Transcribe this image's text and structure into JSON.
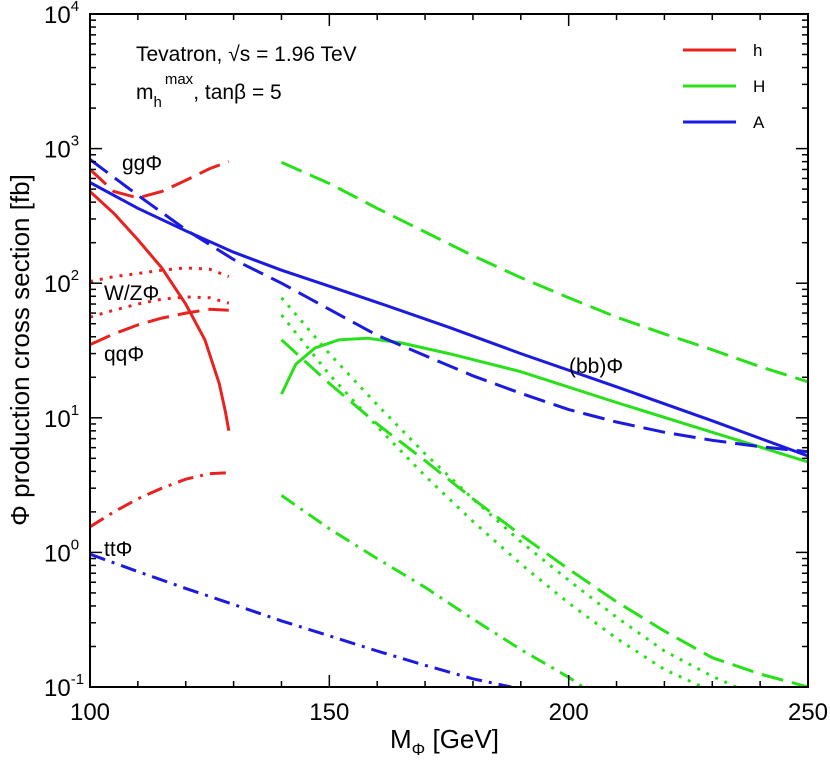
{
  "chart_data": {
    "type": "line",
    "xlabel": "M",
    "xlabel_sub": "Φ",
    "xlabel_unit": " [GeV]",
    "ylabel": "Φ production cross section [fb]",
    "xlim": [
      100,
      250
    ],
    "ylim": [
      0.1,
      10000
    ],
    "yscale": "log",
    "x_ticks": [
      100,
      150,
      200,
      250
    ],
    "y_ticks": [
      {
        "value": 0.1,
        "base": "10",
        "exp": "-1"
      },
      {
        "value": 1,
        "base": "10",
        "exp": "0"
      },
      {
        "value": 10,
        "base": "10",
        "exp": "1"
      },
      {
        "value": 100,
        "base": "10",
        "exp": "2"
      },
      {
        "value": 1000,
        "base": "10",
        "exp": "3"
      },
      {
        "value": 10000,
        "base": "10",
        "exp": "4"
      }
    ],
    "grid": false,
    "legend_position": "top-right",
    "legend": [
      {
        "name": "h",
        "color": "#e8231f"
      },
      {
        "name": "H",
        "color": "#29e01b"
      },
      {
        "name": "A",
        "color": "#1a1ae0"
      }
    ],
    "annotations": {
      "info_line1": "Tevatron, √s = 1.96 TeV",
      "info_line2_main": "m",
      "info_line2_sub": "h",
      "info_line2_sup": "max",
      "info_line2_rest": ", tanβ = 5",
      "gg": "ggΦ",
      "wz": "W/ZΦ",
      "qq": "qqΦ",
      "tt": "ttΦ",
      "bb": "(bb)Φ"
    },
    "series": [
      {
        "boson": "h",
        "process": "bb",
        "color": "#e8231f",
        "style": "solid",
        "points": [
          [
            100,
            480
          ],
          [
            105,
            330
          ],
          [
            110,
            210
          ],
          [
            115,
            130
          ],
          [
            120,
            70
          ],
          [
            124,
            38
          ],
          [
            127,
            18
          ],
          [
            128.3,
            11
          ],
          [
            129,
            8
          ]
        ]
      },
      {
        "boson": "h",
        "process": "gg",
        "color": "#e8231f",
        "style": "dash",
        "points": [
          [
            100,
            700
          ],
          [
            105,
            480
          ],
          [
            110,
            430
          ],
          [
            115,
            480
          ],
          [
            120,
            580
          ],
          [
            125,
            710
          ],
          [
            129,
            800
          ]
        ]
      },
      {
        "boson": "h",
        "process": "WZ",
        "color": "#e8231f",
        "style": "dot",
        "points": [
          [
            100,
            103
          ],
          [
            105,
            112
          ],
          [
            110,
            118
          ],
          [
            115,
            125
          ],
          [
            120,
            130
          ],
          [
            125,
            127
          ],
          [
            129,
            112
          ]
        ]
      },
      {
        "boson": "h",
        "process": "WZ2",
        "color": "#e8231f",
        "style": "dot",
        "points": [
          [
            100,
            56
          ],
          [
            105,
            63
          ],
          [
            110,
            70
          ],
          [
            115,
            76
          ],
          [
            120,
            79
          ],
          [
            125,
            78
          ],
          [
            129,
            71
          ]
        ]
      },
      {
        "boson": "h",
        "process": "qq",
        "color": "#e8231f",
        "style": "dash",
        "points": [
          [
            100,
            35
          ],
          [
            105,
            42
          ],
          [
            110,
            49
          ],
          [
            115,
            55
          ],
          [
            120,
            60
          ],
          [
            125,
            64
          ],
          [
            129,
            63
          ]
        ]
      },
      {
        "boson": "h",
        "process": "tt",
        "color": "#e8231f",
        "style": "dashdot",
        "points": [
          [
            100,
            1.55
          ],
          [
            105,
            2.0
          ],
          [
            110,
            2.5
          ],
          [
            115,
            3.0
          ],
          [
            120,
            3.5
          ],
          [
            125,
            3.85
          ],
          [
            129,
            3.9
          ]
        ]
      },
      {
        "boson": "H",
        "process": "bb",
        "color": "#29e01b",
        "style": "solid",
        "points": [
          [
            140,
            15
          ],
          [
            143,
            25
          ],
          [
            147,
            33
          ],
          [
            152,
            38
          ],
          [
            158,
            39
          ],
          [
            165,
            36
          ],
          [
            175,
            30
          ],
          [
            190,
            22
          ],
          [
            210,
            13
          ],
          [
            230,
            7.8
          ],
          [
            250,
            4.7
          ]
        ]
      },
      {
        "boson": "H",
        "process": "gg",
        "color": "#29e01b",
        "style": "dash",
        "points": [
          [
            140,
            790
          ],
          [
            150,
            550
          ],
          [
            160,
            360
          ],
          [
            170,
            240
          ],
          [
            180,
            160
          ],
          [
            190,
            110
          ],
          [
            200,
            78
          ],
          [
            210,
            56
          ],
          [
            220,
            42
          ],
          [
            230,
            32
          ],
          [
            240,
            24
          ],
          [
            250,
            18.5
          ]
        ]
      },
      {
        "boson": "H",
        "process": "qq",
        "color": "#29e01b",
        "style": "dash",
        "points": [
          [
            140,
            38
          ],
          [
            150,
            18
          ],
          [
            160,
            9
          ],
          [
            170,
            4.8
          ],
          [
            180,
            2.5
          ],
          [
            190,
            1.35
          ],
          [
            200,
            0.75
          ],
          [
            210,
            0.43
          ],
          [
            220,
            0.26
          ],
          [
            230,
            0.165
          ],
          [
            240,
            0.125
          ],
          [
            250,
            0.1
          ]
        ]
      },
      {
        "boson": "H",
        "process": "WZ",
        "color": "#29e01b",
        "style": "dot",
        "points": [
          [
            140,
            78
          ],
          [
            150,
            30
          ],
          [
            160,
            12.5
          ],
          [
            170,
            5.4
          ],
          [
            180,
            2.5
          ],
          [
            190,
            1.2
          ],
          [
            200,
            0.62
          ],
          [
            210,
            0.33
          ],
          [
            220,
            0.185
          ],
          [
            230,
            0.12
          ],
          [
            235,
            0.1
          ]
        ]
      },
      {
        "boson": "H",
        "process": "WZ2",
        "color": "#29e01b",
        "style": "dot",
        "points": [
          [
            140,
            58
          ],
          [
            150,
            21
          ],
          [
            160,
            8.6
          ],
          [
            170,
            3.7
          ],
          [
            180,
            1.7
          ],
          [
            190,
            0.82
          ],
          [
            200,
            0.42
          ],
          [
            210,
            0.23
          ],
          [
            220,
            0.135
          ],
          [
            228,
            0.1
          ]
        ]
      },
      {
        "boson": "H",
        "process": "tt",
        "color": "#29e01b",
        "style": "dashdot",
        "points": [
          [
            140,
            2.65
          ],
          [
            150,
            1.5
          ],
          [
            160,
            0.9
          ],
          [
            170,
            0.55
          ],
          [
            180,
            0.32
          ],
          [
            190,
            0.19
          ],
          [
            200,
            0.118
          ],
          [
            203,
            0.1
          ]
        ]
      },
      {
        "boson": "A",
        "process": "bb",
        "color": "#1a1ae0",
        "style": "solid",
        "points": [
          [
            100,
            560
          ],
          [
            110,
            360
          ],
          [
            120,
            245
          ],
          [
            130,
            170
          ],
          [
            140,
            125
          ],
          [
            150,
            95
          ],
          [
            160,
            72
          ],
          [
            175,
            47
          ],
          [
            190,
            30
          ],
          [
            210,
            17
          ],
          [
            230,
            9.5
          ],
          [
            250,
            5.2
          ]
        ]
      },
      {
        "boson": "A",
        "process": "gg",
        "color": "#1a1ae0",
        "style": "dash",
        "points": [
          [
            100,
            830
          ],
          [
            110,
            450
          ],
          [
            120,
            250
          ],
          [
            130,
            150
          ],
          [
            140,
            100
          ],
          [
            150,
            64
          ],
          [
            160,
            41
          ],
          [
            170,
            29
          ],
          [
            180,
            20.5
          ],
          [
            190,
            15.2
          ],
          [
            200,
            11.5
          ],
          [
            210,
            9.3
          ],
          [
            220,
            7.8
          ],
          [
            230,
            6.8
          ],
          [
            240,
            6.1
          ],
          [
            250,
            5.6
          ]
        ]
      },
      {
        "boson": "A",
        "process": "tt",
        "color": "#1a1ae0",
        "style": "dashdot",
        "points": [
          [
            100,
            0.97
          ],
          [
            110,
            0.72
          ],
          [
            120,
            0.54
          ],
          [
            130,
            0.41
          ],
          [
            140,
            0.31
          ],
          [
            150,
            0.24
          ],
          [
            160,
            0.185
          ],
          [
            170,
            0.145
          ],
          [
            180,
            0.115
          ],
          [
            188,
            0.1
          ]
        ]
      }
    ]
  }
}
